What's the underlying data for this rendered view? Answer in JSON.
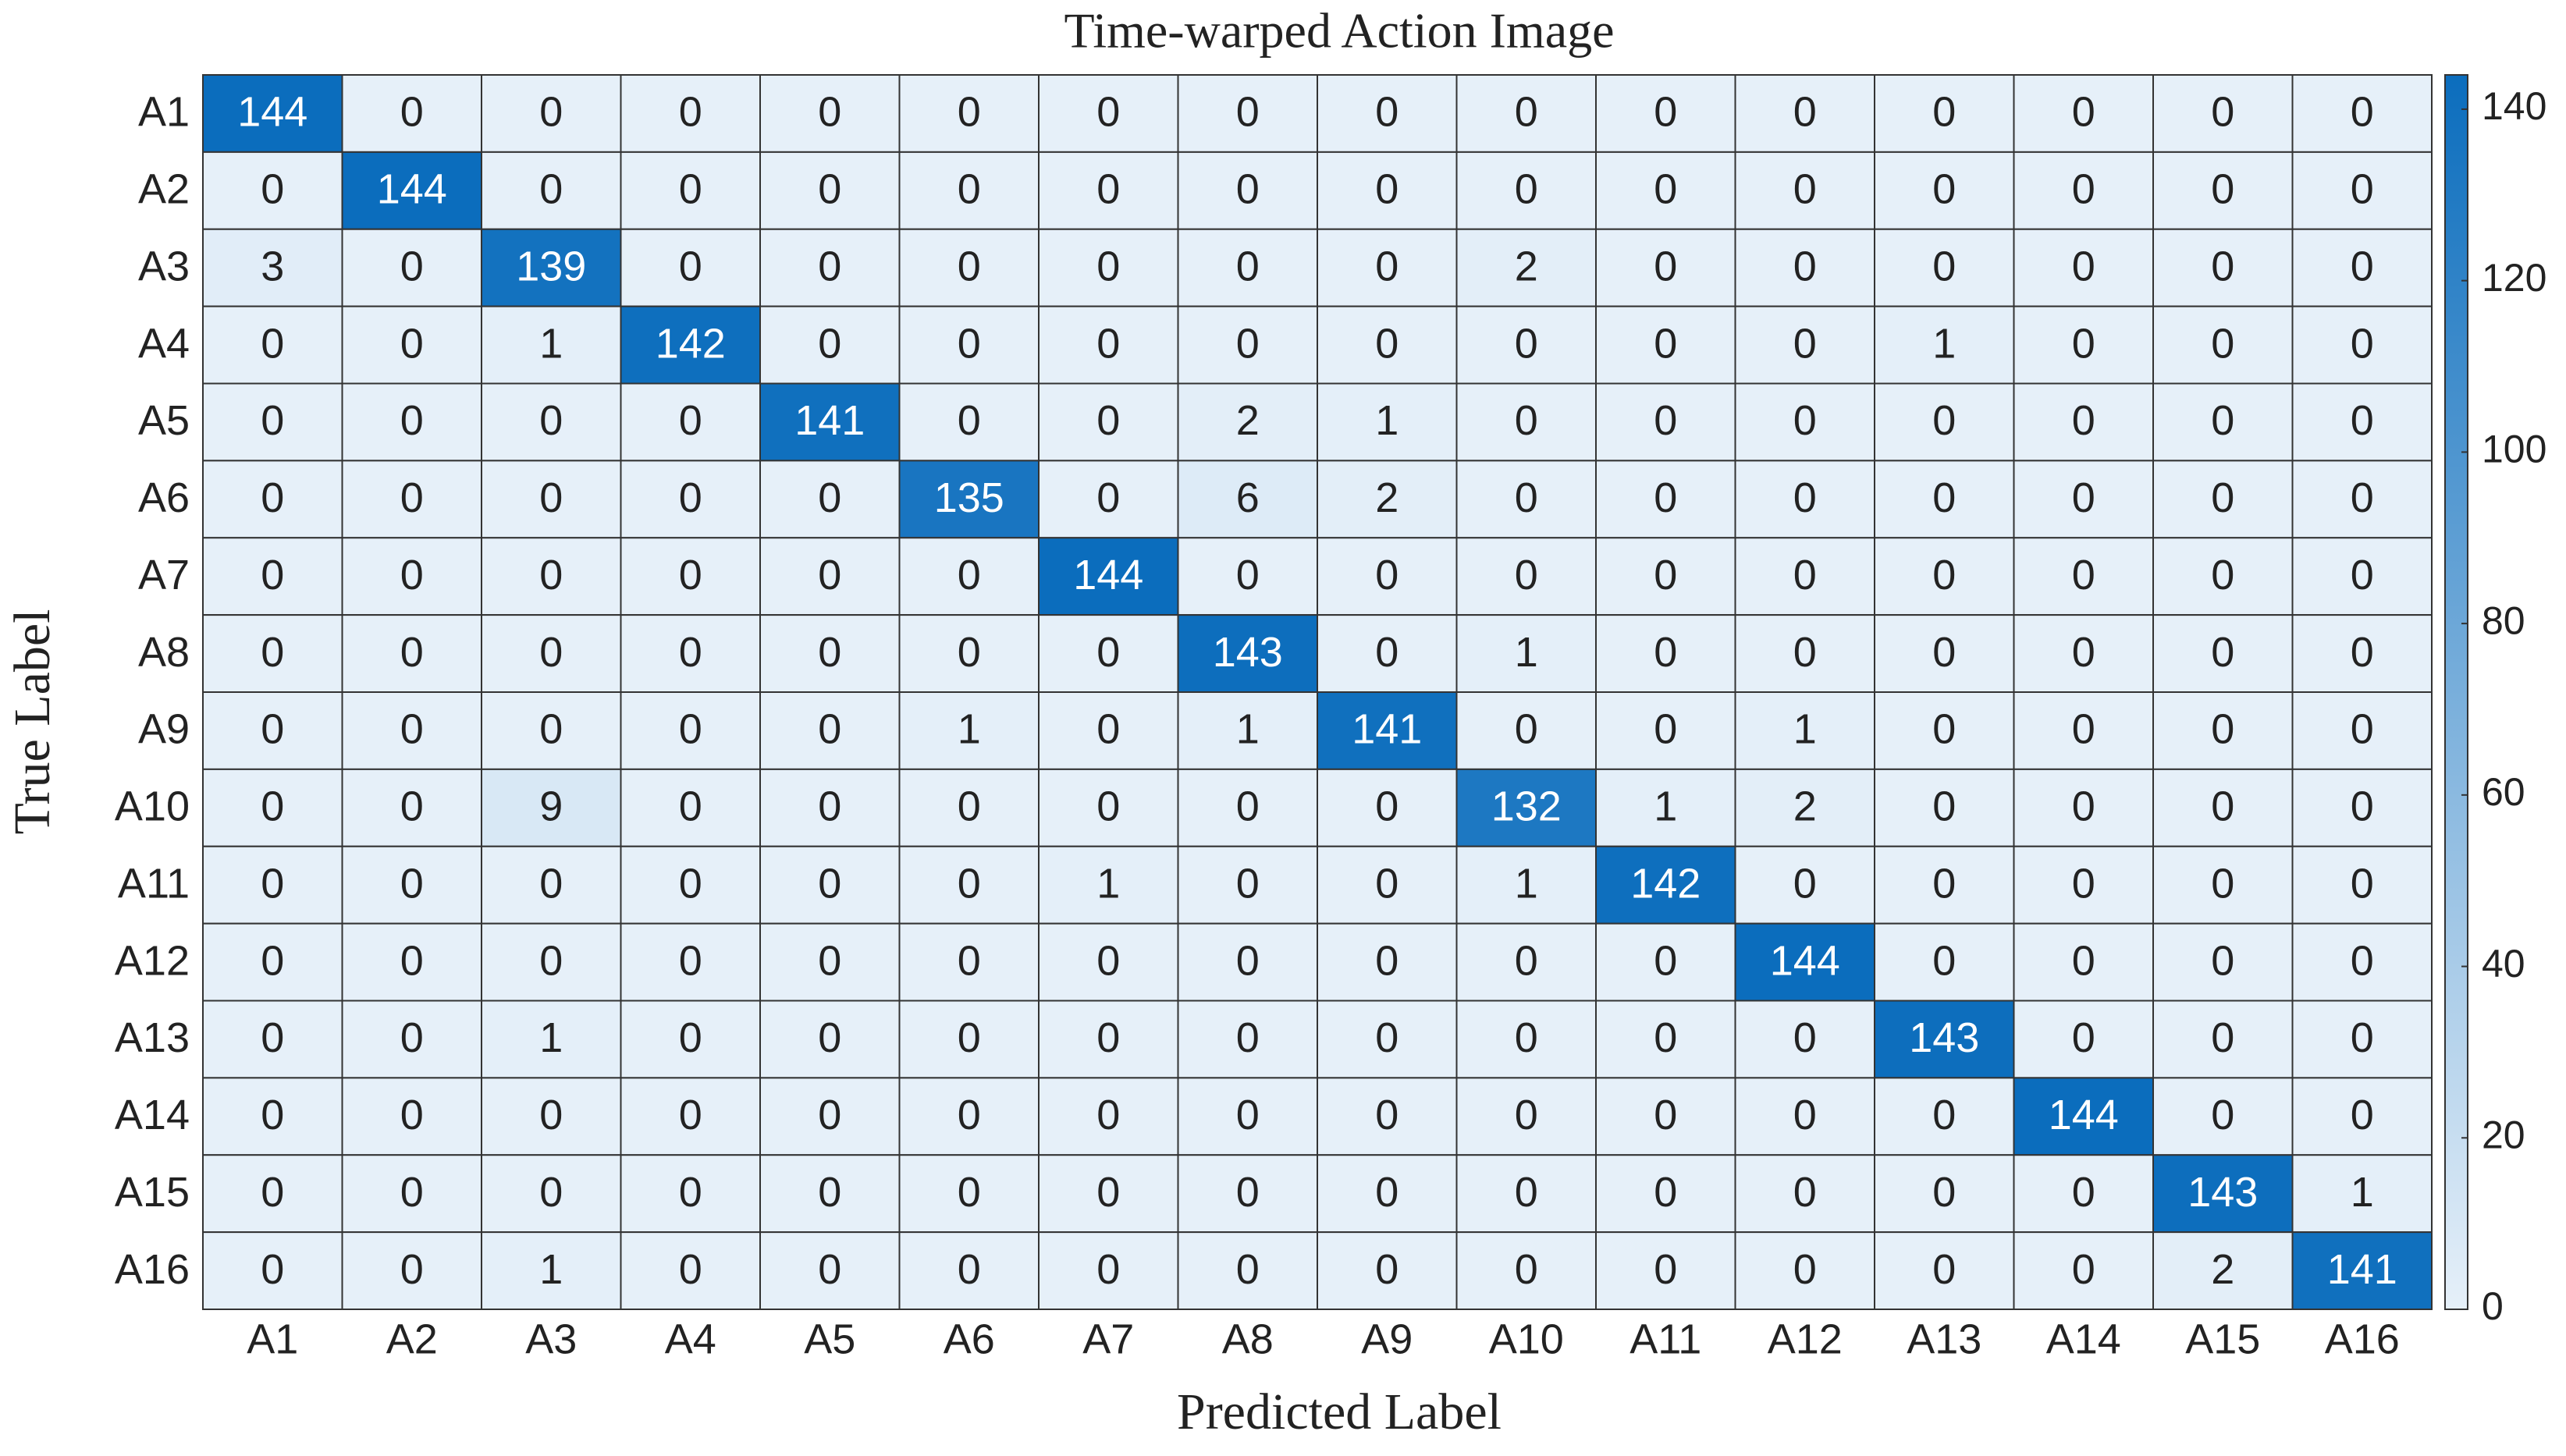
{
  "chart_data": {
    "type": "heatmap",
    "title": "Time-warped Action Image",
    "xlabel": "Predicted Label",
    "ylabel": "True Label",
    "x_categories": [
      "A1",
      "A2",
      "A3",
      "A4",
      "A5",
      "A6",
      "A7",
      "A8",
      "A9",
      "A10",
      "A11",
      "A12",
      "A13",
      "A14",
      "A15",
      "A16"
    ],
    "y_categories": [
      "A1",
      "A2",
      "A3",
      "A4",
      "A5",
      "A6",
      "A7",
      "A8",
      "A9",
      "A10",
      "A11",
      "A12",
      "A13",
      "A14",
      "A15",
      "A16"
    ],
    "values": [
      [
        144,
        0,
        0,
        0,
        0,
        0,
        0,
        0,
        0,
        0,
        0,
        0,
        0,
        0,
        0,
        0
      ],
      [
        0,
        144,
        0,
        0,
        0,
        0,
        0,
        0,
        0,
        0,
        0,
        0,
        0,
        0,
        0,
        0
      ],
      [
        3,
        0,
        139,
        0,
        0,
        0,
        0,
        0,
        0,
        2,
        0,
        0,
        0,
        0,
        0,
        0
      ],
      [
        0,
        0,
        1,
        142,
        0,
        0,
        0,
        0,
        0,
        0,
        0,
        0,
        1,
        0,
        0,
        0
      ],
      [
        0,
        0,
        0,
        0,
        141,
        0,
        0,
        2,
        1,
        0,
        0,
        0,
        0,
        0,
        0,
        0
      ],
      [
        0,
        0,
        0,
        0,
        0,
        135,
        0,
        6,
        2,
        0,
        0,
        0,
        0,
        0,
        0,
        0
      ],
      [
        0,
        0,
        0,
        0,
        0,
        0,
        144,
        0,
        0,
        0,
        0,
        0,
        0,
        0,
        0,
        0
      ],
      [
        0,
        0,
        0,
        0,
        0,
        0,
        0,
        143,
        0,
        1,
        0,
        0,
        0,
        0,
        0,
        0
      ],
      [
        0,
        0,
        0,
        0,
        0,
        1,
        0,
        1,
        141,
        0,
        0,
        1,
        0,
        0,
        0,
        0
      ],
      [
        0,
        0,
        9,
        0,
        0,
        0,
        0,
        0,
        0,
        132,
        1,
        2,
        0,
        0,
        0,
        0
      ],
      [
        0,
        0,
        0,
        0,
        0,
        0,
        1,
        0,
        0,
        1,
        142,
        0,
        0,
        0,
        0,
        0
      ],
      [
        0,
        0,
        0,
        0,
        0,
        0,
        0,
        0,
        0,
        0,
        0,
        144,
        0,
        0,
        0,
        0
      ],
      [
        0,
        0,
        1,
        0,
        0,
        0,
        0,
        0,
        0,
        0,
        0,
        0,
        143,
        0,
        0,
        0
      ],
      [
        0,
        0,
        0,
        0,
        0,
        0,
        0,
        0,
        0,
        0,
        0,
        0,
        0,
        144,
        0,
        0
      ],
      [
        0,
        0,
        0,
        0,
        0,
        0,
        0,
        0,
        0,
        0,
        0,
        0,
        0,
        0,
        143,
        1
      ],
      [
        0,
        0,
        1,
        0,
        0,
        0,
        0,
        0,
        0,
        0,
        0,
        0,
        0,
        0,
        2,
        141
      ]
    ],
    "clim": [
      0,
      144
    ],
    "cticks": [
      0,
      20,
      40,
      60,
      80,
      100,
      120,
      140
    ],
    "colors": [
      "#e6f0f9",
      "#0b6dbd"
    ]
  }
}
